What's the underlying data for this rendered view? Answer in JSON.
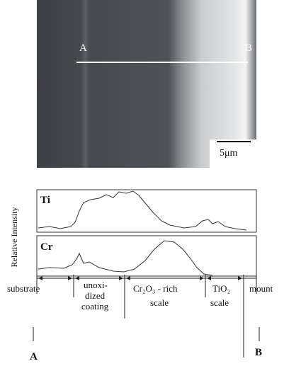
{
  "figure": {
    "image_labels": {
      "left": "A",
      "right": "B"
    },
    "scale_bar": "5μm",
    "panels": [
      {
        "label": "Ti"
      },
      {
        "label": "Cr"
      }
    ],
    "y_axis_label": "Relative Intensity",
    "regions": [
      {
        "lines": [
          "substrate"
        ]
      },
      {
        "lines": [
          "unoxi-",
          "dized",
          "coating"
        ]
      },
      {
        "lines": [
          "Cr₂O₃ - rich",
          "scale"
        ]
      },
      {
        "lines": [
          "TiO₂",
          "scale"
        ]
      },
      {
        "lines": [
          "mount"
        ]
      }
    ],
    "end_labels": {
      "start": "A",
      "end": "B"
    }
  }
}
